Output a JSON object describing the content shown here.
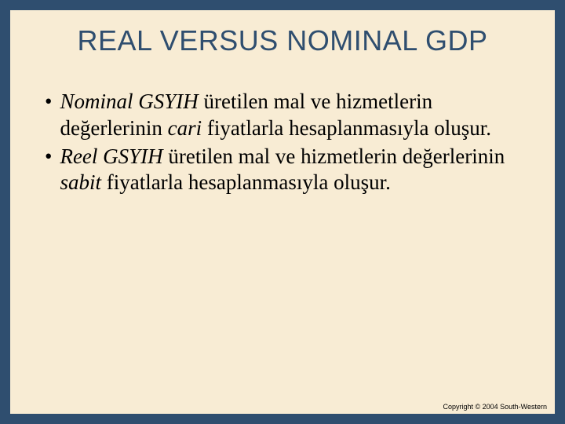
{
  "slide": {
    "background_color": "#2f4e6f",
    "panel_color": "#f8ecd4",
    "title": {
      "text": "REAL VERSUS NOMINAL GDP",
      "color": "#2f4e6f",
      "font_family": "Arial",
      "font_size_pt": 27
    },
    "bullets": [
      {
        "marker": "•",
        "runs": [
          {
            "text": "Nominal GSYIH",
            "style": "italic"
          },
          {
            "text": " üretilen mal ve hizmetlerin değerlerinin ",
            "style": "normal"
          },
          {
            "text": "cari",
            "style": "italic"
          },
          {
            "text": " fiyatlarla hesaplanmasıyla oluşur.",
            "style": "normal"
          }
        ]
      },
      {
        "marker": "•",
        "runs": [
          {
            "text": "Reel GSYIH",
            "style": "italic"
          },
          {
            "text": " üretilen mal ve hizmetlerin değerlerinin ",
            "style": "normal"
          },
          {
            "text": "sabit",
            "style": "italic"
          },
          {
            "text": " fiyatlarla hesaplanmasıyla oluşur.",
            "style": "normal"
          }
        ]
      }
    ],
    "body_font_size_pt": 20,
    "body_color": "#000000",
    "footer": "Copyright © 2004  South-Western"
  }
}
